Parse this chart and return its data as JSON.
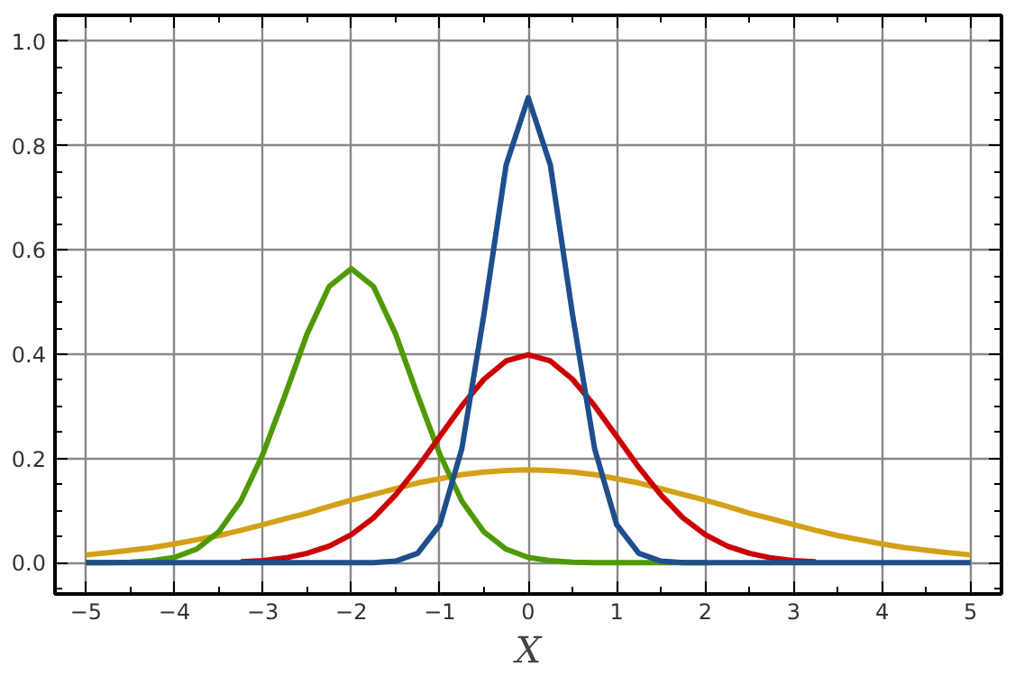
{
  "chart_data": {
    "type": "line",
    "xlabel": "X",
    "x": [
      -5,
      -4.75,
      -4.5,
      -4.25,
      -4,
      -3.75,
      -3.5,
      -3.25,
      -3,
      -2.75,
      -2.5,
      -2.25,
      -2,
      -1.75,
      -1.5,
      -1.25,
      -1,
      -0.75,
      -0.5,
      -0.25,
      0,
      0.25,
      0.5,
      0.75,
      1,
      1.25,
      1.5,
      1.75,
      2,
      2.25,
      2.5,
      2.75,
      3,
      3.25,
      3.5,
      3.75,
      4,
      4.25,
      4.5,
      4.75,
      5
    ],
    "series": [
      {
        "color": "#d4a017",
        "values": [
          0.015,
          0.019,
          0.024,
          0.029,
          0.036,
          0.044,
          0.052,
          0.062,
          0.073,
          0.084,
          0.095,
          0.108,
          0.12,
          0.131,
          0.142,
          0.153,
          0.161,
          0.169,
          0.174,
          0.177,
          0.178,
          0.177,
          0.174,
          0.169,
          0.161,
          0.153,
          0.142,
          0.131,
          0.12,
          0.108,
          0.095,
          0.084,
          0.073,
          0.062,
          0.052,
          0.044,
          0.036,
          0.029,
          0.024,
          0.019,
          0.015
        ]
      },
      {
        "color": "#4e9a06",
        "values": [
          0,
          0,
          0.001,
          0.004,
          0.01,
          0.026,
          0.059,
          0.118,
          0.208,
          0.321,
          0.439,
          0.53,
          0.564,
          0.53,
          0.439,
          0.321,
          0.208,
          0.118,
          0.059,
          0.026,
          0.01,
          0.004,
          0.001,
          0,
          0,
          0,
          0,
          0,
          0,
          null,
          null,
          null,
          null,
          null,
          null,
          null,
          null,
          null,
          null,
          null,
          null
        ]
      },
      {
        "color": "#cc0000",
        "values": [
          null,
          null,
          null,
          null,
          null,
          null,
          null,
          0.002,
          0.004,
          0.009,
          0.018,
          0.032,
          0.054,
          0.086,
          0.13,
          0.183,
          0.242,
          0.301,
          0.352,
          0.387,
          0.399,
          0.387,
          0.352,
          0.301,
          0.242,
          0.183,
          0.13,
          0.086,
          0.054,
          0.032,
          0.018,
          0.009,
          0.004,
          0.002,
          null,
          null,
          null,
          null,
          null,
          null,
          null
        ]
      },
      {
        "color": "#1f4e8c",
        "values": [
          0,
          0,
          0,
          0,
          0,
          0,
          0,
          0,
          0,
          0,
          0,
          0,
          0,
          0,
          0.003,
          0.018,
          0.073,
          0.219,
          0.477,
          0.763,
          0.892,
          0.763,
          0.477,
          0.219,
          0.073,
          0.018,
          0.003,
          0,
          0,
          0,
          0,
          0,
          0,
          0,
          0,
          0,
          0,
          0,
          0,
          0,
          0
        ]
      }
    ],
    "xlim": [
      -5.35,
      5.35
    ],
    "ylim": [
      -0.06,
      1.05
    ],
    "xticks": [
      -5,
      -4,
      -3,
      -2,
      -1,
      0,
      1,
      2,
      3,
      4,
      5
    ],
    "yticks": [
      {
        "value": 0,
        "label": "0.0"
      },
      0.2,
      0.4,
      0.6,
      0.8,
      {
        "value": 1,
        "label": "1.0"
      }
    ],
    "grid": true,
    "line_style": "solid",
    "marker": "none"
  }
}
